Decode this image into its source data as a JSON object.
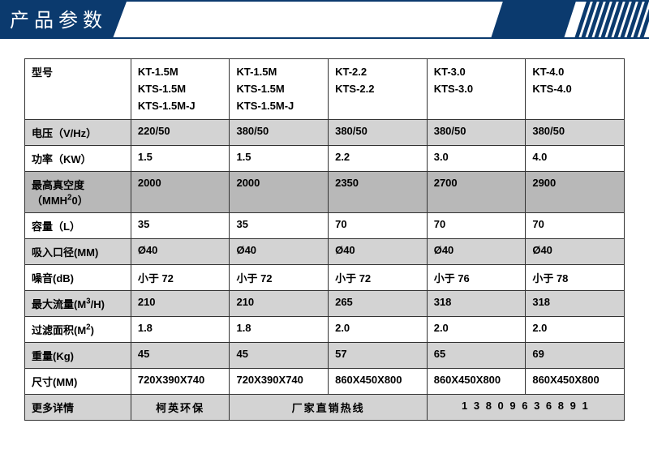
{
  "header": {
    "title": "产品参数"
  },
  "colors": {
    "brand": "#0b3a6e",
    "row_gray": "#d3d3d3",
    "row_darkgray": "#b8b8b8",
    "border": "#333333"
  },
  "table": {
    "labels": {
      "model": "型号",
      "voltage": "电压（V/Hz）",
      "power": "功率（KW）",
      "vacuum": "最高真空度（MMH²0）",
      "capacity": "容量（L）",
      "inlet": "吸入口径(MM)",
      "noise": "噪音(dB)",
      "flow": "最大流量(M³/H)",
      "filter": "过滤面积(M²)",
      "weight": "重量(Kg)",
      "size": "尺寸(MM)",
      "more": "更多详情"
    },
    "models": {
      "c1": "KT-1.5M\nKTS-1.5M\nKTS-1.5M-J",
      "c2": "KT-1.5M\nKTS-1.5M\nKTS-1.5M-J",
      "c3": "KT-2.2\nKTS-2.2",
      "c4": "KT-3.0\nKTS-3.0",
      "c5": "KT-4.0\nKTS-4.0"
    },
    "voltage": {
      "c1": "220/50",
      "c2": "380/50",
      "c3": "380/50",
      "c4": "380/50",
      "c5": "380/50"
    },
    "power": {
      "c1": "1.5",
      "c2": "1.5",
      "c3": "2.2",
      "c4": "3.0",
      "c5": "4.0"
    },
    "vacuum": {
      "c1": "2000",
      "c2": "2000",
      "c3": "2350",
      "c4": "2700",
      "c5": "2900"
    },
    "capacity": {
      "c1": "35",
      "c2": "35",
      "c3": "70",
      "c4": "70",
      "c5": "70"
    },
    "inlet": {
      "c1": "Ø40",
      "c2": "Ø40",
      "c3": "Ø40",
      "c4": "Ø40",
      "c5": "Ø40"
    },
    "noise": {
      "c1": "小于 72",
      "c2": "小于 72",
      "c3": "小于 72",
      "c4": "小于 76",
      "c5": "小于 78"
    },
    "flow": {
      "c1": "210",
      "c2": "210",
      "c3": "265",
      "c4": "318",
      "c5": "318"
    },
    "filter": {
      "c1": "1.8",
      "c2": "1.8",
      "c3": "2.0",
      "c4": "2.0",
      "c5": "2.0"
    },
    "weight": {
      "c1": "45",
      "c2": "45",
      "c3": "57",
      "c4": "65",
      "c5": "69"
    },
    "size": {
      "c1": "720X390X740",
      "c2": "720X390X740",
      "c3": "860X450X800",
      "c4": "860X450X800",
      "c5": "860X450X800"
    },
    "footer": {
      "col_a": "柯英环保",
      "col_b": "厂家直销热线",
      "col_c": "1 3 8 0 9 6 3 6 8 9 1"
    }
  }
}
